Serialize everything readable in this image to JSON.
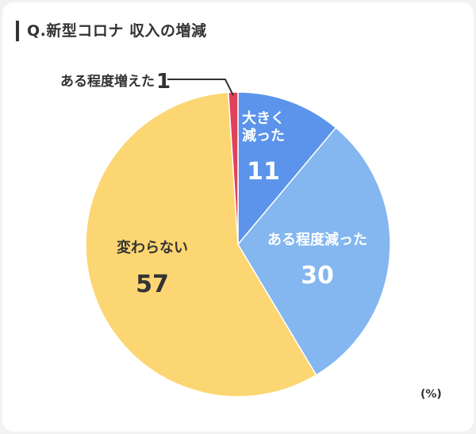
{
  "title": "Q.新型コロナ 収入の増減",
  "unit": "(%)",
  "colors": {
    "dark": "#333333",
    "white": "#ffffff",
    "red": "#e0415a",
    "blue": "#5b94ea",
    "light_blue": "#84b6f0",
    "yellow": "#fcd672"
  },
  "chart_data": {
    "type": "pie",
    "title": "Q.新型コロナ 収入の増減",
    "unit": "(%)",
    "slices": [
      {
        "label": "大きく\n減った",
        "value": 11,
        "color": "#5b94ea"
      },
      {
        "label": "ある程度減った",
        "value": 30,
        "color": "#84b6f0"
      },
      {
        "label": "変わらない",
        "value": 57,
        "color": "#fcd672"
      },
      {
        "label": "ある程度増えた",
        "value": 1,
        "color": "#e0415a"
      }
    ]
  }
}
